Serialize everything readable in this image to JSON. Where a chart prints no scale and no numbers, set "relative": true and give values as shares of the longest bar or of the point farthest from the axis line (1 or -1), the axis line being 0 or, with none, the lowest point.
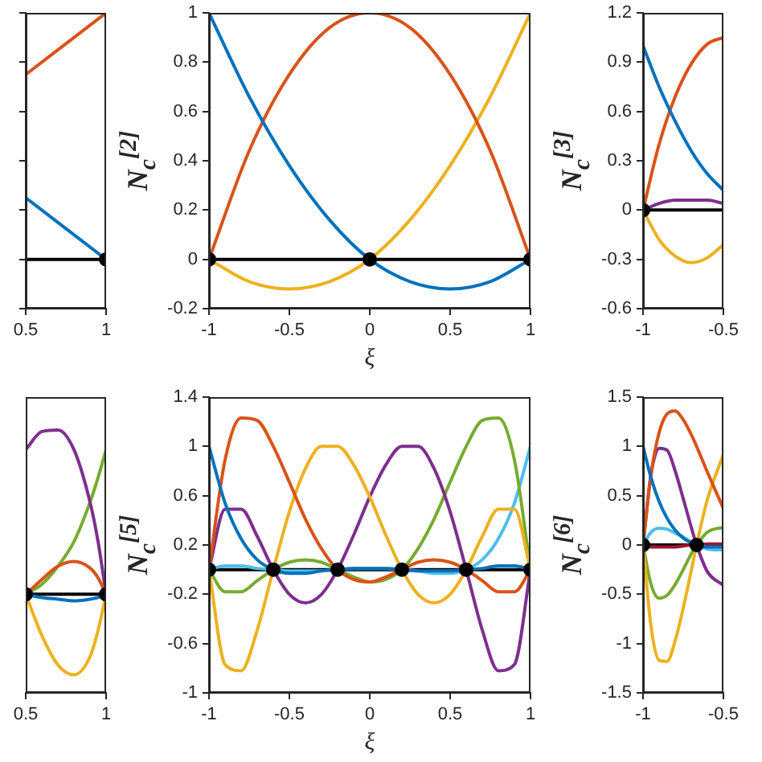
{
  "chart_data": [
    {
      "type": "line",
      "x": [
        0.5,
        1
      ],
      "xlim": [
        0.5,
        1
      ],
      "xticks": [
        0.5,
        1
      ],
      "ylim": [
        -0.2,
        1
      ],
      "yticks": [
        -0.2,
        0,
        0.2,
        0.4,
        0.6,
        0.8,
        1
      ],
      "tick_labels": "x",
      "ref_lines": [
        {
          "axis": "y",
          "value": 0,
          "color": "#000000"
        }
      ],
      "series": [
        {
          "color": "#0072bd",
          "values": [
            0.25,
            0
          ]
        },
        {
          "color": "#d95319",
          "values": [
            0.75,
            1
          ]
        },
        {
          "type": "scatter",
          "color": "#000000",
          "marker": "circle",
          "x": [
            1
          ],
          "values": [
            0
          ]
        }
      ]
    },
    {
      "type": "line",
      "x": [
        -1,
        -0.75,
        -0.5,
        -0.25,
        0,
        0.25,
        0.5,
        0.75,
        1
      ],
      "xlim": [
        -1,
        1
      ],
      "xticks": [
        -1,
        -0.5,
        0,
        0.5,
        1
      ],
      "ylim": [
        -0.2,
        1
      ],
      "yticks": [
        -0.2,
        0,
        0.2,
        0.4,
        0.6,
        0.8,
        1
      ],
      "xlabel": "ξ",
      "ylabel": "N$_{c}$$^{[2]}$",
      "ref_lines": [
        {
          "axis": "y",
          "value": 0,
          "color": "#000000"
        }
      ],
      "series": [
        {
          "color": "#0072bd",
          "values": [
            1,
            0.66,
            0.38,
            0.16,
            0,
            -0.09,
            -0.12,
            -0.09,
            0
          ]
        },
        {
          "color": "#d95319",
          "values": [
            0,
            0.44,
            0.75,
            0.94,
            1,
            0.94,
            0.75,
            0.44,
            0
          ]
        },
        {
          "color": "#edb120",
          "values": [
            0,
            -0.09,
            -0.12,
            -0.09,
            0,
            0.16,
            0.38,
            0.66,
            1
          ]
        },
        {
          "type": "scatter",
          "color": "#000000",
          "marker": "circle",
          "x": [
            -1,
            0,
            1
          ],
          "values": [
            0,
            0,
            0
          ]
        }
      ]
    },
    {
      "type": "line",
      "x": [
        -1,
        -0.9,
        -0.8,
        -0.7,
        -0.6,
        -0.5
      ],
      "xlim": [
        -1,
        -0.5
      ],
      "xticks": [
        -1,
        -0.5
      ],
      "ylim": [
        -0.6,
        1.2
      ],
      "yticks": [
        -0.6,
        -0.3,
        0,
        0.3,
        0.6,
        0.9,
        1.2
      ],
      "ylabel": "N$_{c}$$^{[3]}$",
      "ref_lines": [
        {
          "axis": "y",
          "value": 0,
          "color": "#000000"
        }
      ],
      "series": [
        {
          "color": "#0072bd",
          "values": [
            1,
            0.75,
            0.54,
            0.36,
            0.22,
            0.12
          ]
        },
        {
          "color": "#d95319",
          "values": [
            0,
            0.4,
            0.69,
            0.89,
            1.01,
            1.05
          ]
        },
        {
          "color": "#edb120",
          "values": [
            0,
            -0.18,
            -0.28,
            -0.32,
            -0.29,
            -0.21
          ]
        },
        {
          "color": "#7e2f8e",
          "values": [
            0,
            0.04,
            0.06,
            0.06,
            0.06,
            0.04
          ]
        },
        {
          "type": "scatter",
          "color": "#000000",
          "marker": "circle",
          "x": [
            -1
          ],
          "values": [
            0
          ]
        }
      ]
    },
    {
      "type": "line",
      "relative": true,
      "x": [
        0.5,
        0.6,
        0.7,
        0.8,
        0.9,
        0.95,
        1
      ],
      "xlim": [
        0.5,
        1
      ],
      "xticks": [
        0.5,
        1
      ],
      "series": [
        {
          "color": "#0072bd",
          "values": [
            0,
            -0.02,
            -0.03,
            -0.04,
            -0.03,
            -0.02,
            0
          ]
        },
        {
          "color": "#d95319",
          "values": [
            0,
            0.09,
            0.17,
            0.2,
            0.16,
            0.1,
            0
          ]
        },
        {
          "color": "#edb120",
          "values": [
            0,
            -0.25,
            -0.43,
            -0.49,
            -0.38,
            -0.22,
            0
          ]
        },
        {
          "color": "#7e2f8e",
          "values": [
            0.88,
            0.99,
            1,
            0.88,
            0.56,
            0.32,
            0
          ]
        },
        {
          "color": "#77ac30",
          "values": [
            0,
            0.06,
            0.17,
            0.32,
            0.56,
            0.71,
            0.88
          ]
        },
        {
          "type": "scatter",
          "color": "#000000",
          "marker": "circle",
          "x": [
            0.5,
            1
          ],
          "values": [
            0,
            0
          ]
        }
      ]
    },
    {
      "type": "line",
      "x": [
        -1,
        -0.9,
        -0.8,
        -0.7,
        -0.6,
        -0.5,
        -0.4,
        -0.3,
        -0.2,
        -0.1,
        0,
        0.1,
        0.2,
        0.3,
        0.4,
        0.5,
        0.6,
        0.7,
        0.8,
        0.9,
        1
      ],
      "xlim": [
        -1,
        1
      ],
      "xticks": [
        -1,
        -0.5,
        0,
        0.5,
        1
      ],
      "ylim": [
        -1,
        1.4
      ],
      "yticks": [
        -1,
        -0.6,
        -0.2,
        0.2,
        0.6,
        1,
        1.4
      ],
      "xlabel": "ξ",
      "ylabel": "N$_{c}$$^{[5]}$",
      "ref_lines": [
        {
          "axis": "y",
          "value": 0,
          "color": "#000000"
        }
      ],
      "series": [
        {
          "color": "#0072bd",
          "values": [
            1,
            0.54,
            0.25,
            0.08,
            0,
            -0.03,
            -0.03,
            -0.01,
            0,
            0.01,
            0.01,
            0.01,
            0,
            -0.01,
            -0.01,
            -0.01,
            0,
            0.01,
            0.03,
            0.03,
            0
          ]
        },
        {
          "color": "#d95319",
          "values": [
            0,
            0.89,
            1.23,
            1.21,
            1,
            0.71,
            0.41,
            0.17,
            0,
            -0.08,
            -0.1,
            -0.06,
            0,
            0.06,
            0.08,
            0.06,
            0,
            -0.09,
            -0.18,
            -0.18,
            0
          ]
        },
        {
          "color": "#edb120",
          "values": [
            0,
            -0.77,
            -0.82,
            -0.49,
            0,
            0.47,
            0.82,
            1,
            1,
            0.85,
            0.59,
            0.28,
            0,
            -0.2,
            -0.27,
            -0.2,
            0,
            0.27,
            0.49,
            0.49,
            0
          ]
        },
        {
          "color": "#7e2f8e",
          "values": [
            0,
            0.49,
            0.49,
            0.27,
            0,
            -0.2,
            -0.27,
            -0.2,
            0,
            0.28,
            0.59,
            0.85,
            1,
            1,
            0.82,
            0.47,
            0,
            -0.49,
            -0.82,
            -0.77,
            0
          ]
        },
        {
          "color": "#77ac30",
          "values": [
            0,
            -0.18,
            -0.18,
            -0.09,
            0,
            0.06,
            0.08,
            0.06,
            0,
            -0.06,
            -0.1,
            -0.08,
            0,
            0.17,
            0.41,
            0.71,
            1,
            1.21,
            1.23,
            0.89,
            0
          ]
        },
        {
          "color": "#4dbeee",
          "values": [
            0,
            0.03,
            0.03,
            0.01,
            0,
            -0.01,
            -0.01,
            -0.01,
            0,
            0.01,
            0.01,
            0.01,
            0,
            -0.01,
            -0.03,
            -0.03,
            0,
            0.08,
            0.25,
            0.54,
            1
          ]
        },
        {
          "type": "scatter",
          "color": "#000000",
          "marker": "circle",
          "x": [
            -1,
            -0.6,
            -0.2,
            0.2,
            0.6,
            1
          ],
          "values": [
            0,
            0,
            0,
            0,
            0,
            0
          ]
        }
      ]
    },
    {
      "type": "line",
      "x": [
        -1,
        -0.95,
        -0.9,
        -0.85,
        -0.8,
        -0.75,
        -0.7,
        -0.6667,
        -0.6,
        -0.5
      ],
      "xlim": [
        -1,
        -0.5
      ],
      "xticks": [
        -1,
        -0.5
      ],
      "ylim": [
        -1.5,
        1.5
      ],
      "yticks": [
        -1.5,
        -1,
        -0.5,
        0,
        0.5,
        1,
        1.5
      ],
      "ylabel": "N$_{c}$$^{[6]}$",
      "ref_lines": [
        {
          "axis": "y",
          "value": 0,
          "color": "#000000"
        }
      ],
      "series": [
        {
          "color": "#0072bd",
          "values": [
            1,
            0.68,
            0.44,
            0.27,
            0.15,
            0.07,
            0.02,
            0,
            -0.02,
            -0.02
          ]
        },
        {
          "color": "#d95319",
          "values": [
            0,
            0.72,
            1.14,
            1.33,
            1.36,
            1.27,
            1.12,
            1,
            0.74,
            0.37
          ]
        },
        {
          "color": "#edb120",
          "values": [
            0,
            -0.83,
            -1.17,
            -1.18,
            -0.97,
            -0.64,
            -0.26,
            0,
            0.46,
            0.92
          ]
        },
        {
          "color": "#7e2f8e",
          "values": [
            0,
            0.72,
            0.98,
            0.96,
            0.75,
            0.47,
            0.18,
            0,
            -0.27,
            -0.41
          ]
        },
        {
          "color": "#77ac30",
          "values": [
            0,
            -0.4,
            -0.54,
            -0.51,
            -0.4,
            -0.25,
            -0.09,
            0,
            0.13,
            0.18
          ]
        },
        {
          "color": "#4dbeee",
          "values": [
            0,
            0.13,
            0.17,
            0.16,
            0.12,
            0.08,
            0.03,
            0,
            -0.04,
            -0.05
          ]
        },
        {
          "color": "#a2142f",
          "values": [
            0,
            -0.02,
            -0.02,
            -0.02,
            -0.02,
            -0.01,
            0,
            0,
            0.01,
            0.01
          ]
        },
        {
          "type": "scatter",
          "color": "#000000",
          "marker": "circle",
          "x": [
            -1,
            -0.6667
          ],
          "values": [
            0,
            0
          ]
        }
      ]
    }
  ]
}
